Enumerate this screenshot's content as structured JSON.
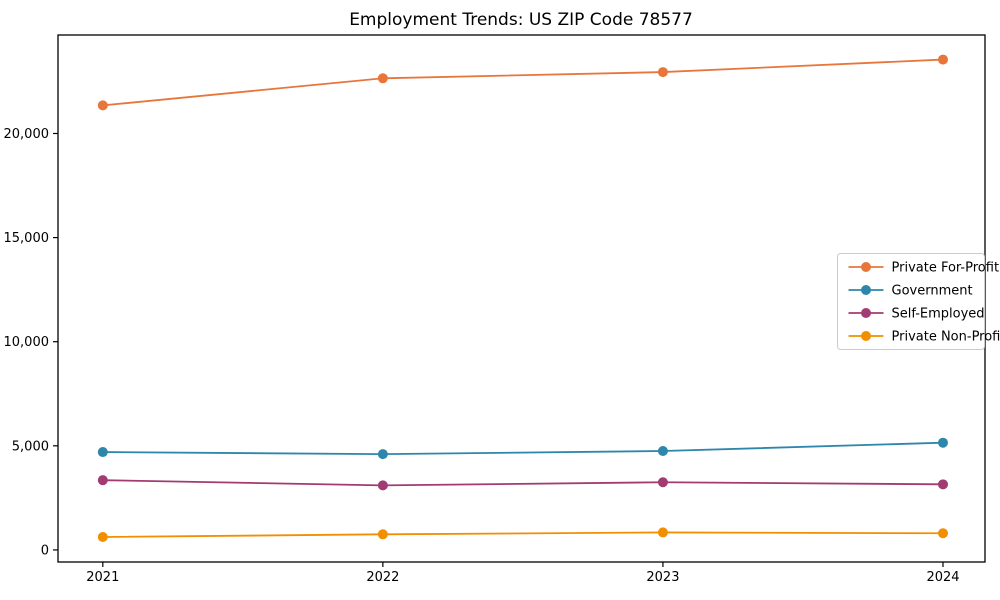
{
  "chart_data": {
    "type": "line",
    "title": "Employment Trends: US ZIP Code 78577",
    "xlabel": "",
    "ylabel": "",
    "x": [
      2021,
      2022,
      2023,
      2024
    ],
    "x_tick_labels": [
      "2021",
      "2022",
      "2023",
      "2024"
    ],
    "y_ticks": {
      "values": [
        0,
        5000,
        10000,
        15000,
        20000
      ],
      "labels": [
        "0",
        "5,000",
        "10,000",
        "15,000",
        "20,000"
      ]
    },
    "xlim": [
      2020.84,
      2024.15
    ],
    "ylim": [
      -580,
      24730
    ],
    "grid": false,
    "marker": "circle",
    "series": [
      {
        "name": "Private For-Profit",
        "color": "#E8763B",
        "values": [
          21350,
          22650,
          22950,
          23550
        ]
      },
      {
        "name": "Government",
        "color": "#2E86AB",
        "values": [
          4700,
          4600,
          4750,
          5150
        ]
      },
      {
        "name": "Self-Employed",
        "color": "#A23B72",
        "values": [
          3350,
          3100,
          3250,
          3150
        ]
      },
      {
        "name": "Private Non-Profit",
        "color": "#F18F01",
        "values": [
          620,
          750,
          840,
          800
        ]
      }
    ],
    "legend": {
      "position": "middle-right-inside",
      "background": "#ffffff",
      "border_color": "#cccccc",
      "text_color": "#000000"
    },
    "colors": {
      "spine": "#000000",
      "background": "#ffffff"
    }
  }
}
